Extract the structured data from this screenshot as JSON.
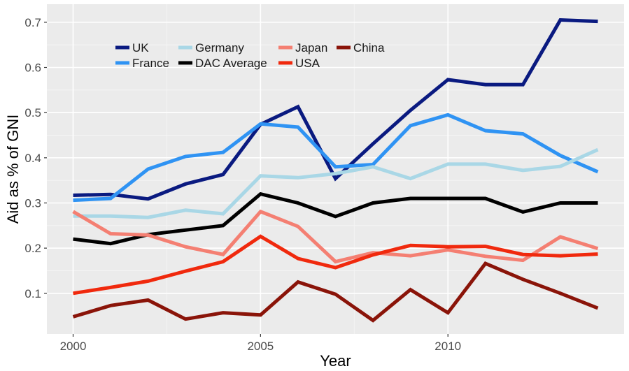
{
  "chart_data": {
    "type": "line",
    "title": "",
    "xlabel": "Year",
    "ylabel": "Aid as % of GNI",
    "x": [
      2000,
      2001,
      2002,
      2003,
      2004,
      2005,
      2006,
      2007,
      2008,
      2009,
      2010,
      2011,
      2012,
      2013,
      2014
    ],
    "xlim": [
      1999.3,
      2014.7
    ],
    "ylim": [
      0.01,
      0.74
    ],
    "x_ticks": [
      2000,
      2005,
      2010
    ],
    "x_tick_labels": [
      "2000",
      "2005",
      "2010"
    ],
    "y_ticks": [
      0.1,
      0.2,
      0.3,
      0.4,
      0.5,
      0.6,
      0.7
    ],
    "y_tick_labels": [
      "0.1",
      "0.2",
      "0.3",
      "0.4",
      "0.5",
      "0.6",
      "0.7"
    ],
    "grid": true,
    "legend_position": "top-left",
    "series": [
      {
        "name": "UK",
        "color": "#0a1a80",
        "values": [
          0.317,
          0.319,
          0.309,
          0.342,
          0.363,
          0.474,
          0.513,
          0.354,
          0.431,
          0.505,
          0.573,
          0.562,
          0.562,
          0.705,
          0.702
        ]
      },
      {
        "name": "France",
        "color": "#2f93f3",
        "values": [
          0.306,
          0.31,
          0.375,
          0.403,
          0.412,
          0.475,
          0.468,
          0.38,
          0.385,
          0.471,
          0.495,
          0.46,
          0.453,
          0.405,
          0.369
        ]
      },
      {
        "name": "Germany",
        "color": "#a9d7e6",
        "values": [
          0.271,
          0.271,
          0.268,
          0.284,
          0.276,
          0.36,
          0.356,
          0.365,
          0.38,
          0.354,
          0.386,
          0.386,
          0.372,
          0.381,
          0.418
        ]
      },
      {
        "name": "DAC Average",
        "color": "#000000",
        "values": [
          0.22,
          0.21,
          0.23,
          0.24,
          0.25,
          0.32,
          0.3,
          0.27,
          0.3,
          0.31,
          0.31,
          0.31,
          0.28,
          0.3,
          0.3
        ]
      },
      {
        "name": "Japan",
        "color": "#f47f72",
        "values": [
          0.281,
          0.232,
          0.229,
          0.203,
          0.186,
          0.281,
          0.248,
          0.17,
          0.19,
          0.183,
          0.196,
          0.182,
          0.173,
          0.225,
          0.199
        ]
      },
      {
        "name": "USA",
        "color": "#f0290d",
        "values": [
          0.1,
          0.113,
          0.127,
          0.149,
          0.17,
          0.226,
          0.177,
          0.157,
          0.185,
          0.206,
          0.203,
          0.204,
          0.186,
          0.183,
          0.187
        ]
      },
      {
        "name": "China",
        "color": "#8a1409",
        "values": [
          0.048,
          0.073,
          0.085,
          0.043,
          0.057,
          0.052,
          0.125,
          0.098,
          0.04,
          0.108,
          0.057,
          0.166,
          0.131,
          0.1,
          0.067
        ]
      }
    ]
  }
}
